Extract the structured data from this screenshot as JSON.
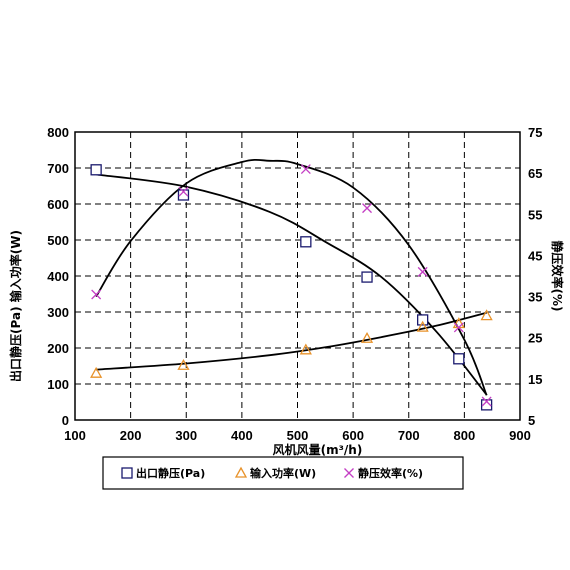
{
  "chart_data": {
    "type": "line",
    "title": "",
    "xlabel": "风机风量(m³/h)",
    "ylabel_left": "出口静压(Pa) 输入功率(W)",
    "ylabel_right": "静压效率(%)",
    "xlim": [
      100,
      900
    ],
    "ylim_left": [
      0,
      800
    ],
    "ylim_right": [
      5,
      75
    ],
    "x_ticks": [
      100,
      200,
      300,
      400,
      500,
      600,
      700,
      800,
      900
    ],
    "y_left_ticks": [
      0,
      100,
      200,
      300,
      400,
      500,
      600,
      700,
      800
    ],
    "y_right_ticks": [
      5,
      15,
      25,
      35,
      45,
      55,
      65,
      75
    ],
    "grid": true,
    "legend_position": "bottom",
    "series": [
      {
        "name": "出口静压(Pa)",
        "axis": "left",
        "marker": "square",
        "color": "#1a1a6e",
        "x": [
          138,
          295,
          515,
          625,
          725,
          790,
          840
        ],
        "y": [
          695,
          625,
          495,
          397,
          278,
          170,
          42
        ]
      },
      {
        "name": "输入功率(W)",
        "axis": "left",
        "marker": "triangle",
        "color": "#e8922a",
        "x": [
          138,
          295,
          515,
          625,
          725,
          790,
          840
        ],
        "y": [
          130,
          152,
          195,
          227,
          258,
          268,
          290
        ]
      },
      {
        "name": "静压效率(%)",
        "axis": "right",
        "marker": "x",
        "color": "#c43fc4",
        "x": [
          138,
          295,
          515,
          625,
          725,
          790,
          840
        ],
        "y": [
          35.5,
          60.5,
          66,
          56.5,
          41,
          27.5,
          9.5
        ]
      }
    ],
    "trend_curves": [
      {
        "axis": "left",
        "x": [
          138,
          300,
          450,
          550,
          650,
          750,
          840
        ],
        "y": [
          682,
          648,
          578,
          495,
          398,
          245,
          70
        ]
      },
      {
        "axis": "left",
        "x": [
          138,
          300,
          450,
          550,
          650,
          750,
          840
        ],
        "y": [
          140,
          157,
          180,
          202,
          230,
          262,
          298
        ]
      },
      {
        "axis": "right",
        "x": [
          138,
          200,
          300,
          400,
          450,
          500,
          600,
          700,
          800,
          840
        ],
        "y": [
          35,
          48.5,
          62.5,
          67.7,
          68,
          67.2,
          61.5,
          47.5,
          24.5,
          11
        ]
      }
    ]
  }
}
